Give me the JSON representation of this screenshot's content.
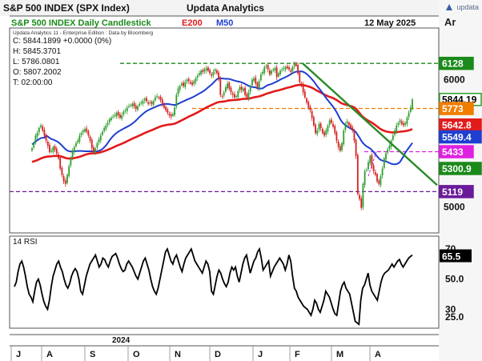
{
  "header": {
    "title": "S&P 500 INDEX (SPX Index)",
    "brand": "Updata Analytics",
    "subtitle": "S&P 500 INDEX Daily Candlestick",
    "e200_label": "E200",
    "m50_label": "M50",
    "date": "12 May 2025",
    "right_label": "Ar",
    "logo_text": "updata"
  },
  "info": {
    "edition": "Updata Analytics 11 - Enterprise Edition : Data by Bloomberg",
    "close": "C: 5844.1899  +0.0000 (0%)",
    "high": "H: 5845.3701",
    "low": "L: 5786.0801",
    "open": "O: 5807.2002",
    "time": "T: 02:00:00"
  },
  "rsi_label": "14 RSI",
  "colors": {
    "up": "#2e9e2e",
    "down": "#d62020",
    "e200": "#e31b1b",
    "m50": "#1f3fd1",
    "trend": "#2a8a2a",
    "level_6128": "#1a8a1a",
    "level_5773": "#ef7d00",
    "level_5433": "#e020e0",
    "level_5119": "#6a1b9a"
  },
  "chart_data": [
    {
      "type": "candlestick",
      "title": "S&P 500 INDEX Daily Candlestick",
      "ylim": [
        4800,
        6400
      ],
      "x_tick_labels": [
        "J",
        "A",
        "S",
        "O",
        "N",
        "D",
        "J",
        "F",
        "M",
        "A"
      ],
      "year_label": "2024",
      "y_tick_labels": [
        "6000",
        "5000"
      ],
      "price_labels": [
        {
          "text": "6128",
          "value": 6128,
          "color": "#1a8a1a",
          "textColor": "#ffffff"
        },
        {
          "text": "5844.19",
          "value": 5844.19,
          "color": "#2e9e2e",
          "textColor": "#000000",
          "white": true
        },
        {
          "text": "5773",
          "value": 5773,
          "color": "#ef7d00",
          "textColor": "#ffffff"
        },
        {
          "text": "5642.8",
          "value": 5642.8,
          "color": "#e31b1b",
          "textColor": "#ffffff"
        },
        {
          "text": "5549.4",
          "value": 5549.4,
          "color": "#1f3fd1",
          "textColor": "#ffffff"
        },
        {
          "text": "5433",
          "value": 5433,
          "color": "#e020e0",
          "textColor": "#ffffff"
        },
        {
          "text": "5300.9",
          "value": 5300.9,
          "color": "#1a8a1a",
          "textColor": "#ffffff"
        },
        {
          "text": "5119",
          "value": 5119,
          "color": "#6a1b9a",
          "textColor": "#ffffff"
        }
      ],
      "horizontal_levels": [
        6128,
        5773,
        5433,
        5119
      ],
      "close_series": [
        5460,
        5500,
        5560,
        5580,
        5620,
        5640,
        5600,
        5560,
        5520,
        5480,
        5430,
        5440,
        5470,
        5450,
        5420,
        5380,
        5300,
        5250,
        5200,
        5180,
        5250,
        5320,
        5380,
        5440,
        5470,
        5500,
        5520,
        5560,
        5580,
        5600,
        5610,
        5590,
        5560,
        5520,
        5460,
        5430,
        5460,
        5500,
        5530,
        5560,
        5590,
        5620,
        5640,
        5660,
        5690,
        5700,
        5710,
        5720,
        5740,
        5720,
        5700,
        5720,
        5750,
        5760,
        5780,
        5790,
        5800,
        5810,
        5790,
        5770,
        5790,
        5810,
        5820,
        5830,
        5850,
        5830,
        5810,
        5820,
        5810,
        5830,
        5860,
        5870,
        5860,
        5840,
        5810,
        5780,
        5760,
        5740,
        5720,
        5710,
        5730,
        5780,
        5880,
        5930,
        5950,
        5970,
        5950,
        5980,
        6000,
        5990,
        5970,
        5960,
        5990,
        6010,
        6030,
        6050,
        6070,
        6060,
        6080,
        6090,
        6070,
        6050,
        6030,
        6060,
        6080,
        6050,
        6000,
        5880,
        5870,
        5900,
        5940,
        5970,
        5930,
        5900,
        5880,
        5860,
        5870,
        5910,
        5940,
        5920,
        5930,
        5880,
        5860,
        5900,
        5950,
        6000,
        6010,
        5970,
        5940,
        5990,
        6040,
        6060,
        6100,
        6110,
        6080,
        6040,
        6070,
        6080,
        6090,
        6020,
        6050,
        6070,
        6080,
        6090,
        6100,
        6090,
        6080,
        6060,
        6100,
        6130,
        6110,
        6050,
        5980,
        5960,
        5900,
        5860,
        5820,
        5780,
        5760,
        5700,
        5640,
        5580,
        5600,
        5650,
        5620,
        5580,
        5560,
        5600,
        5640,
        5680,
        5660,
        5630,
        5580,
        5520,
        5470,
        5440,
        5500,
        5600,
        5650,
        5670,
        5640,
        5620,
        5600,
        5520,
        5400,
        5100,
        5060,
        4990,
        5180,
        5280,
        5290,
        5350,
        5400,
        5320,
        5280,
        5250,
        5200,
        5180,
        5240,
        5300,
        5380,
        5420,
        5450,
        5480,
        5520,
        5560,
        5600,
        5640,
        5660,
        5680,
        5650,
        5640,
        5660,
        5700,
        5740,
        5780,
        5844
      ],
      "rsi_ylim": [
        18,
        78
      ],
      "rsi_tick_labels": [
        {
          "text": "70",
          "value": 70
        },
        {
          "text": "65.5",
          "value": 65.5,
          "box": true
        },
        {
          "text": "50.0",
          "value": 50
        },
        {
          "text": "30",
          "value": 30
        },
        {
          "text": "25.0",
          "value": 25
        }
      ],
      "rsi_series": [
        45,
        48,
        55,
        60,
        62,
        58,
        52,
        45,
        40,
        38,
        35,
        42,
        48,
        50,
        46,
        40,
        35,
        32,
        30,
        36,
        45,
        52,
        56,
        60,
        62,
        58,
        55,
        50,
        46,
        44,
        47,
        52,
        55,
        57,
        55,
        50,
        42,
        40,
        46,
        52,
        56,
        60,
        62,
        64,
        66,
        62,
        58,
        60,
        64,
        63,
        60,
        58,
        62,
        65,
        66,
        67,
        64,
        60,
        57,
        55,
        56,
        60,
        62,
        60,
        58,
        55,
        52,
        50,
        54,
        58,
        62,
        64,
        60,
        56,
        50,
        45,
        42,
        40,
        44,
        50,
        56,
        62,
        68,
        70,
        66,
        62,
        60,
        64,
        66,
        62,
        58,
        55,
        60,
        64,
        66,
        68,
        70,
        66,
        62,
        60,
        58,
        56,
        54,
        58,
        62,
        60,
        55,
        42,
        40,
        46,
        52,
        56,
        54,
        50,
        47,
        45,
        48,
        54,
        58,
        56,
        58,
        52,
        48,
        54,
        60,
        64,
        66,
        60,
        54,
        58,
        62,
        64,
        68,
        70,
        64,
        56,
        58,
        60,
        62,
        52,
        55,
        58,
        60,
        62,
        64,
        62,
        60,
        56,
        60,
        66,
        62,
        52,
        44,
        42,
        38,
        36,
        34,
        32,
        31,
        30,
        28,
        26,
        30,
        36,
        34,
        30,
        28,
        32,
        36,
        42,
        40,
        38,
        34,
        30,
        27,
        26,
        34,
        42,
        46,
        48,
        44,
        42,
        40,
        34,
        28,
        22,
        21,
        20,
        36,
        44,
        46,
        50,
        54,
        46,
        42,
        40,
        38,
        36,
        42,
        48,
        52,
        54,
        55,
        56,
        58,
        60,
        58,
        60,
        62,
        63,
        60,
        58,
        60,
        62,
        64,
        65,
        66
      ],
      "e200_series_start": 5350,
      "m50_series_start": 5520
    }
  ]
}
